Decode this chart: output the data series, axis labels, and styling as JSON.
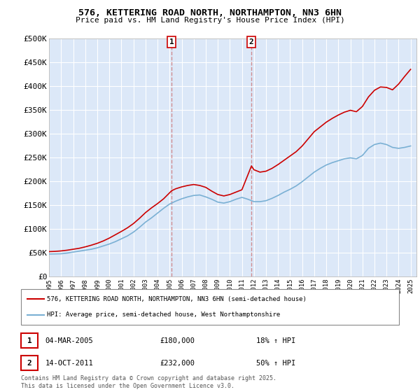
{
  "title": "576, KETTERING ROAD NORTH, NORTHAMPTON, NN3 6HN",
  "subtitle": "Price paid vs. HM Land Registry's House Price Index (HPI)",
  "ylabel_ticks": [
    "£0",
    "£50K",
    "£100K",
    "£150K",
    "£200K",
    "£250K",
    "£300K",
    "£350K",
    "£400K",
    "£450K",
    "£500K"
  ],
  "ytick_values": [
    0,
    50000,
    100000,
    150000,
    200000,
    250000,
    300000,
    350000,
    400000,
    450000,
    500000
  ],
  "ylim": [
    0,
    500000
  ],
  "xmin": 1995.0,
  "xmax": 2025.5,
  "plot_bg_color": "#dce8f8",
  "grid_color": "#ffffff",
  "red_color": "#cc0000",
  "blue_color": "#7ab0d4",
  "vline_color": "#cc6666",
  "purchase1": {
    "date": "04-MAR-2005",
    "price": 180000,
    "hpi_pct": "18%",
    "label": "1",
    "x": 2005.17
  },
  "purchase2": {
    "date": "14-OCT-2011",
    "price": 232000,
    "hpi_pct": "50%",
    "label": "2",
    "x": 2011.79
  },
  "legend_line1": "576, KETTERING ROAD NORTH, NORTHAMPTON, NN3 6HN (semi-detached house)",
  "legend_line2": "HPI: Average price, semi-detached house, West Northamptonshire",
  "footer": "Contains HM Land Registry data © Crown copyright and database right 2025.\nThis data is licensed under the Open Government Licence v3.0.",
  "hpi_x": [
    1995.0,
    1995.5,
    1996.0,
    1996.5,
    1997.0,
    1997.5,
    1998.0,
    1998.5,
    1999.0,
    1999.5,
    2000.0,
    2000.5,
    2001.0,
    2001.5,
    2002.0,
    2002.5,
    2003.0,
    2003.5,
    2004.0,
    2004.5,
    2005.0,
    2005.5,
    2006.0,
    2006.5,
    2007.0,
    2007.5,
    2008.0,
    2008.5,
    2009.0,
    2009.5,
    2010.0,
    2010.5,
    2011.0,
    2011.5,
    2012.0,
    2012.5,
    2013.0,
    2013.5,
    2014.0,
    2014.5,
    2015.0,
    2015.5,
    2016.0,
    2016.5,
    2017.0,
    2017.5,
    2018.0,
    2018.5,
    2019.0,
    2019.5,
    2020.0,
    2020.5,
    2021.0,
    2021.5,
    2022.0,
    2022.5,
    2023.0,
    2023.5,
    2024.0,
    2024.5,
    2025.0
  ],
  "hpi_y": [
    47000,
    47200,
    47500,
    49000,
    51000,
    53000,
    55000,
    57000,
    60000,
    64000,
    68000,
    73000,
    79000,
    85000,
    93000,
    103000,
    114000,
    123000,
    133000,
    143000,
    152000,
    158000,
    163000,
    167000,
    170000,
    171000,
    167000,
    162000,
    156000,
    154000,
    157000,
    162000,
    166000,
    162000,
    157000,
    157000,
    159000,
    164000,
    170000,
    177000,
    183000,
    190000,
    199000,
    209000,
    219000,
    227000,
    234000,
    239000,
    243000,
    247000,
    249000,
    247000,
    254000,
    269000,
    277000,
    280000,
    277000,
    271000,
    269000,
    271000,
    274000
  ],
  "price_x": [
    1995.0,
    1995.5,
    1996.0,
    1996.5,
    1997.0,
    1997.5,
    1998.0,
    1998.5,
    1999.0,
    1999.5,
    2000.0,
    2000.5,
    2001.0,
    2001.5,
    2002.0,
    2002.5,
    2003.0,
    2003.5,
    2004.0,
    2004.5,
    2005.17,
    2005.5,
    2006.0,
    2006.5,
    2007.0,
    2007.5,
    2008.0,
    2008.5,
    2009.0,
    2009.5,
    2010.0,
    2010.5,
    2011.0,
    2011.79,
    2012.0,
    2012.5,
    2013.0,
    2013.5,
    2014.0,
    2014.5,
    2015.0,
    2015.5,
    2016.0,
    2016.5,
    2017.0,
    2017.5,
    2018.0,
    2018.5,
    2019.0,
    2019.5,
    2020.0,
    2020.5,
    2021.0,
    2021.5,
    2022.0,
    2022.5,
    2023.0,
    2023.5,
    2024.0,
    2024.5,
    2025.0
  ],
  "price_y": [
    52000,
    52500,
    53500,
    55000,
    57000,
    59000,
    62000,
    65500,
    69500,
    74500,
    80500,
    87500,
    94500,
    102000,
    111000,
    122000,
    134000,
    144000,
    153000,
    163000,
    180000,
    184000,
    188000,
    191000,
    193000,
    191000,
    187000,
    179000,
    172000,
    169000,
    172000,
    177000,
    182000,
    232000,
    224000,
    219000,
    221000,
    227000,
    235000,
    244000,
    253000,
    262000,
    274000,
    289000,
    304000,
    314000,
    324000,
    332000,
    339000,
    345000,
    349000,
    346000,
    357000,
    377000,
    391000,
    398000,
    397000,
    392000,
    404000,
    420000,
    435000
  ]
}
